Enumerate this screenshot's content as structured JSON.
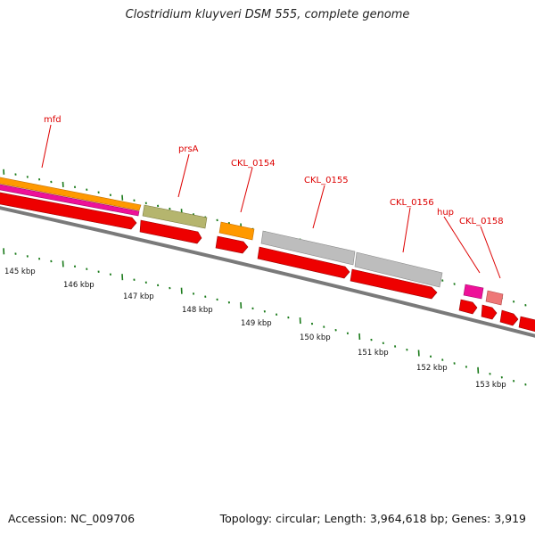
{
  "title": "Clostridium kluyveri DSM 555, complete genome",
  "footer": {
    "accession": "Accession: NC_009706",
    "summary": "Topology: circular; Length: 3,964,618 bp; Genes: 3,919"
  },
  "colors": {
    "backbone": "#808080",
    "cds_red": "#ee0000",
    "orange": "#ff9900",
    "magenta": "#ee1199",
    "olive": "#b5b56e",
    "grey": "#bdbdbd",
    "pink": "#ee7777",
    "label_red": "#dd0000",
    "tick_green": "#1a7a1a"
  },
  "gene_labels": [
    {
      "name": "mfd"
    },
    {
      "name": "prsA"
    },
    {
      "name": "CKL_0154"
    },
    {
      "name": "CKL_0155"
    },
    {
      "name": "CKL_0156"
    },
    {
      "name": "hup"
    },
    {
      "name": "CKL_0158"
    }
  ],
  "kbp_labels": [
    "145 kbp",
    "146 kbp",
    "147 kbp",
    "148 kbp",
    "149 kbp",
    "150 kbp",
    "151 kbp",
    "152 kbp",
    "153 kbp"
  ]
}
